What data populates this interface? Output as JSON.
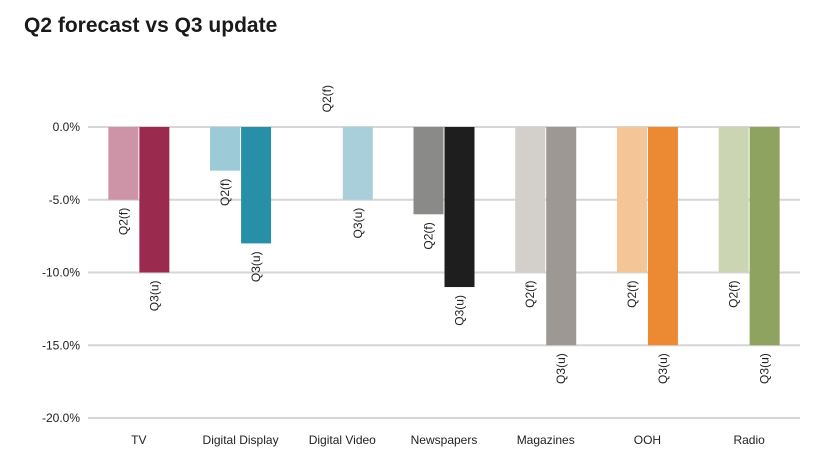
{
  "chart_data": {
    "type": "bar",
    "title": "Q2 forecast vs Q3 update",
    "xlabel": "",
    "ylabel": "",
    "ylim": [
      -20,
      0
    ],
    "ytick_values": [
      0,
      -5,
      -10,
      -15,
      -20
    ],
    "yticks": [
      "0.0%",
      "-5.0%",
      "-10.0%",
      "-15.0%",
      "-20.0%"
    ],
    "grid": true,
    "legend": "none",
    "categories": [
      "TV",
      "Digital Display",
      "Digital Video",
      "Newspapers",
      "Magazines",
      "OOH",
      "Radio"
    ],
    "series": [
      {
        "values": [
          -5,
          -3,
          0,
          -6,
          -10,
          -10,
          -10
        ]
      },
      {
        "values": [
          -10,
          -8,
          -5,
          -11,
          -15,
          -15,
          -15
        ]
      }
    ],
    "bar_labels": [
      [
        "Q2(f)",
        "Q3(u)"
      ],
      [
        "Q2(f)",
        "Q3(u)"
      ],
      [
        "Q2(f)",
        "Q3(u)"
      ],
      [
        "Q2(f)",
        "Q3(u)"
      ],
      [
        "Q2(f)",
        "Q3(u)"
      ],
      [
        "Q2(f)",
        "Q3(u)"
      ],
      [
        "Q2(f)",
        "Q3(u)"
      ]
    ],
    "colors": {
      "q2": [
        "#cd93a6",
        "#9ccad6",
        "#a9cfda",
        "#8a8a88",
        "#d3cfcb",
        "#f4c596",
        "#cbd5b4"
      ],
      "q3": [
        "#9b2a4f",
        "#2790a8",
        "#a9cfda",
        "#1e1e1e",
        "#9d9894",
        "#ec8a33",
        "#8fa361"
      ],
      "grid": "#d6d6d6"
    }
  }
}
